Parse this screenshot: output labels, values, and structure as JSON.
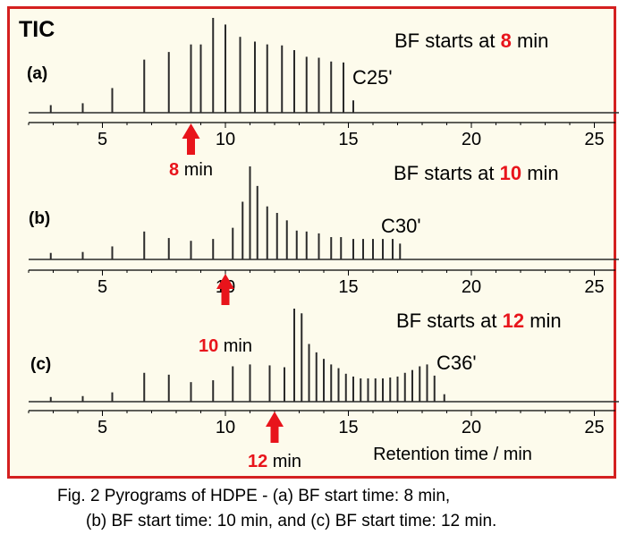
{
  "figure": {
    "tic_label": "TIC",
    "xlabel": "Retention time / min",
    "caption_line1": "Fig. 2 Pyrograms of HDPE - (a) BF start time: 8 min,",
    "caption_line2": "(b) BF start time: 10 min, and (c) BF start time: 12 min.",
    "line_color": "#2a2a2a",
    "accent_color": "#e8141b"
  },
  "chart_data": [
    {
      "type": "line",
      "panel_label": "(a)",
      "annotation_prefix": "BF starts at ",
      "bf_start": "8",
      "annotation_suffix": " min",
      "arrow_value": "8",
      "arrow_unit": " min",
      "arrow_x": 8.6,
      "peak_label": "C25'",
      "xlim": [
        2,
        26
      ],
      "xticks": [
        5,
        10,
        15,
        20,
        25
      ],
      "ylim": [
        0,
        1
      ],
      "peaks": [
        {
          "x": 2.9,
          "y": 0.08
        },
        {
          "x": 4.2,
          "y": 0.1
        },
        {
          "x": 5.4,
          "y": 0.26
        },
        {
          "x": 6.7,
          "y": 0.56
        },
        {
          "x": 7.7,
          "y": 0.64
        },
        {
          "x": 8.6,
          "y": 0.72
        },
        {
          "x": 9.0,
          "y": 0.72
        },
        {
          "x": 9.5,
          "y": 1.0
        },
        {
          "x": 10.0,
          "y": 0.93
        },
        {
          "x": 10.6,
          "y": 0.8
        },
        {
          "x": 11.2,
          "y": 0.75
        },
        {
          "x": 11.7,
          "y": 0.72
        },
        {
          "x": 12.3,
          "y": 0.71
        },
        {
          "x": 12.8,
          "y": 0.66
        },
        {
          "x": 13.3,
          "y": 0.59
        },
        {
          "x": 13.8,
          "y": 0.58
        },
        {
          "x": 14.3,
          "y": 0.54
        },
        {
          "x": 14.8,
          "y": 0.53
        },
        {
          "x": 15.2,
          "y": 0.13
        }
      ]
    },
    {
      "type": "line",
      "panel_label": "(b)",
      "annotation_prefix": "BF starts at ",
      "bf_start": "10",
      "annotation_suffix": " min",
      "arrow_value": "10",
      "arrow_unit": " min",
      "arrow_x": 10.0,
      "peak_label": "C30'",
      "xlim": [
        2,
        26
      ],
      "xticks": [
        5,
        10,
        15,
        20,
        25
      ],
      "ylim": [
        0,
        1
      ],
      "peaks": [
        {
          "x": 2.9,
          "y": 0.07
        },
        {
          "x": 4.2,
          "y": 0.08
        },
        {
          "x": 5.4,
          "y": 0.14
        },
        {
          "x": 6.7,
          "y": 0.3
        },
        {
          "x": 7.7,
          "y": 0.23
        },
        {
          "x": 8.6,
          "y": 0.2
        },
        {
          "x": 9.5,
          "y": 0.22
        },
        {
          "x": 10.3,
          "y": 0.34
        },
        {
          "x": 10.7,
          "y": 0.62
        },
        {
          "x": 11.0,
          "y": 1.0
        },
        {
          "x": 11.3,
          "y": 0.79
        },
        {
          "x": 11.7,
          "y": 0.57
        },
        {
          "x": 12.1,
          "y": 0.5
        },
        {
          "x": 12.5,
          "y": 0.42
        },
        {
          "x": 12.9,
          "y": 0.31
        },
        {
          "x": 13.3,
          "y": 0.3
        },
        {
          "x": 13.8,
          "y": 0.28
        },
        {
          "x": 14.3,
          "y": 0.24
        },
        {
          "x": 14.7,
          "y": 0.24
        },
        {
          "x": 15.2,
          "y": 0.22
        },
        {
          "x": 15.6,
          "y": 0.22
        },
        {
          "x": 16.0,
          "y": 0.22
        },
        {
          "x": 16.4,
          "y": 0.22
        },
        {
          "x": 16.8,
          "y": 0.22
        },
        {
          "x": 17.1,
          "y": 0.17
        }
      ]
    },
    {
      "type": "line",
      "panel_label": "(c)",
      "annotation_prefix": "BF starts at ",
      "bf_start": "12",
      "annotation_suffix": " min",
      "arrow_value": "12",
      "arrow_unit": " min",
      "arrow_x": 12.0,
      "peak_label": "C36'",
      "xlim": [
        2,
        26
      ],
      "xticks": [
        5,
        10,
        15,
        20,
        25
      ],
      "ylim": [
        0,
        1
      ],
      "peaks": [
        {
          "x": 2.9,
          "y": 0.05
        },
        {
          "x": 4.2,
          "y": 0.06
        },
        {
          "x": 5.4,
          "y": 0.1
        },
        {
          "x": 6.7,
          "y": 0.31
        },
        {
          "x": 7.7,
          "y": 0.29
        },
        {
          "x": 8.6,
          "y": 0.21
        },
        {
          "x": 9.5,
          "y": 0.23
        },
        {
          "x": 10.3,
          "y": 0.38
        },
        {
          "x": 11.0,
          "y": 0.4
        },
        {
          "x": 11.8,
          "y": 0.39
        },
        {
          "x": 12.4,
          "y": 0.37
        },
        {
          "x": 12.8,
          "y": 1.0
        },
        {
          "x": 13.1,
          "y": 0.95
        },
        {
          "x": 13.4,
          "y": 0.62
        },
        {
          "x": 13.7,
          "y": 0.53
        },
        {
          "x": 14.0,
          "y": 0.46
        },
        {
          "x": 14.3,
          "y": 0.4
        },
        {
          "x": 14.6,
          "y": 0.36
        },
        {
          "x": 14.9,
          "y": 0.3
        },
        {
          "x": 15.2,
          "y": 0.27
        },
        {
          "x": 15.5,
          "y": 0.25
        },
        {
          "x": 15.8,
          "y": 0.25
        },
        {
          "x": 16.1,
          "y": 0.25
        },
        {
          "x": 16.4,
          "y": 0.25
        },
        {
          "x": 16.7,
          "y": 0.26
        },
        {
          "x": 17.0,
          "y": 0.27
        },
        {
          "x": 17.3,
          "y": 0.31
        },
        {
          "x": 17.6,
          "y": 0.34
        },
        {
          "x": 17.9,
          "y": 0.38
        },
        {
          "x": 18.2,
          "y": 0.4
        },
        {
          "x": 18.5,
          "y": 0.28
        },
        {
          "x": 18.9,
          "y": 0.08
        }
      ]
    }
  ]
}
